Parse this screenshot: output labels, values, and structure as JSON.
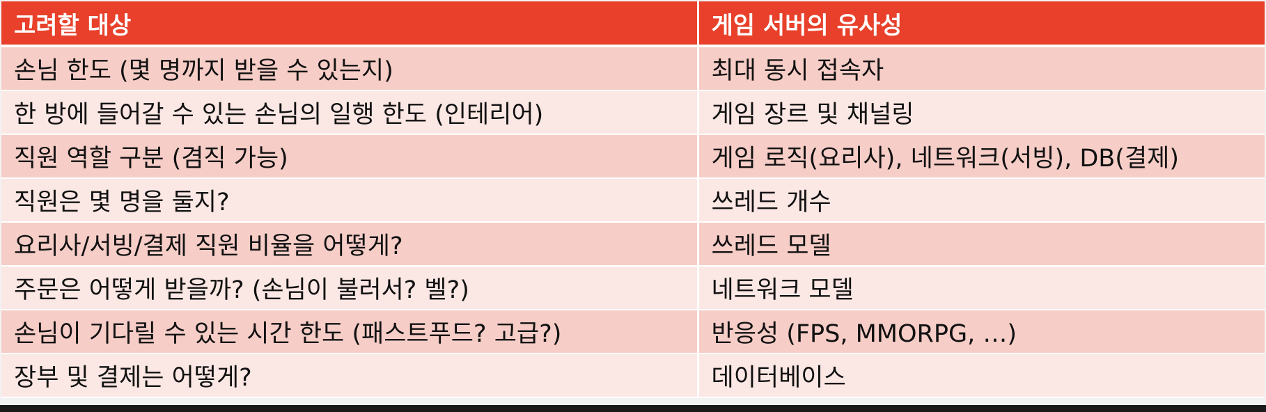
{
  "table": {
    "headers": [
      "고려할 대상",
      "게임 서버의 유사성"
    ],
    "rows": [
      [
        "손님 한도 (몇 명까지 받을 수 있는지)",
        "최대 동시 접속자"
      ],
      [
        "한 방에 들어갈 수 있는 손님의 일행 한도 (인테리어)",
        "게임 장르 및 채널링"
      ],
      [
        "직원 역할 구분 (겸직 가능)",
        "게임 로직(요리사), 네트워크(서빙), DB(결제)"
      ],
      [
        "직원은 몇 명을 둘지?",
        "쓰레드 개수"
      ],
      [
        "요리사/서빙/결제 직원 비율을 어떻게?",
        "쓰레드 모델"
      ],
      [
        "주문은 어떻게 받을까? (손님이 불러서? 벨?)",
        "네트워크 모델"
      ],
      [
        "손님이 기다릴 수 있는 시간 한도 (패스트푸드? 고급?)",
        "반응성 (FPS, MMORPG, …)"
      ],
      [
        "장부 및 결제는 어떻게?",
        "데이터베이스"
      ]
    ]
  },
  "colors": {
    "header_bg": "#e8402a",
    "row_odd": "#f6cdc7",
    "row_even": "#fbe7e4"
  }
}
